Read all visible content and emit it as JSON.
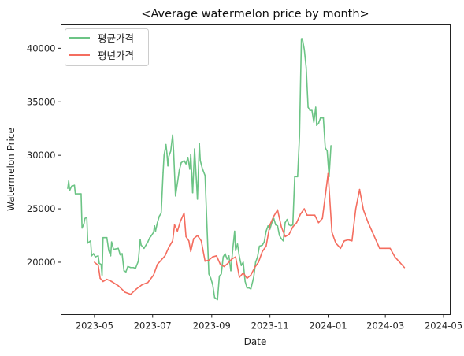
{
  "chart_data": {
    "type": "line",
    "title": "<Average watermelon price by month>",
    "xlabel": "Date",
    "ylabel": "Watermelon Price",
    "xlim": [
      "2023-03-27",
      "2024-05-08"
    ],
    "ylim": [
      15100,
      42200
    ],
    "x_ticks": [
      "2023-05",
      "2023-07",
      "2023-09",
      "2023-11",
      "2024-01",
      "2024-03",
      "2024-05"
    ],
    "x_tick_dates": [
      "2023-05-01",
      "2023-07-01",
      "2023-09-01",
      "2023-11-01",
      "2024-01-01",
      "2024-03-01",
      "2024-05-01"
    ],
    "y_ticks": [
      20000,
      25000,
      30000,
      35000,
      40000
    ],
    "legend_position": "upper-left",
    "grid": false,
    "series": [
      {
        "name": "평균가격",
        "color": "#6cc485",
        "points": [
          [
            "2023-04-03",
            26900
          ],
          [
            "2023-04-04",
            27600
          ],
          [
            "2023-04-05",
            26700
          ],
          [
            "2023-04-07",
            27100
          ],
          [
            "2023-04-10",
            27200
          ],
          [
            "2023-04-11",
            26400
          ],
          [
            "2023-04-17",
            26400
          ],
          [
            "2023-04-18",
            23200
          ],
          [
            "2023-04-20",
            23600
          ],
          [
            "2023-04-21",
            24100
          ],
          [
            "2023-04-23",
            24200
          ],
          [
            "2023-04-24",
            21800
          ],
          [
            "2023-04-27",
            22000
          ],
          [
            "2023-04-28",
            20600
          ],
          [
            "2023-04-30",
            20800
          ],
          [
            "2023-05-02",
            20500
          ],
          [
            "2023-05-05",
            20600
          ],
          [
            "2023-05-06",
            19900
          ],
          [
            "2023-05-08",
            19800
          ],
          [
            "2023-05-09",
            18800
          ],
          [
            "2023-05-10",
            22300
          ],
          [
            "2023-05-14",
            22300
          ],
          [
            "2023-05-16",
            21100
          ],
          [
            "2023-05-18",
            20600
          ],
          [
            "2023-05-19",
            21900
          ],
          [
            "2023-05-21",
            21200
          ],
          [
            "2023-05-26",
            21300
          ],
          [
            "2023-05-28",
            20700
          ],
          [
            "2023-05-30",
            20800
          ],
          [
            "2023-06-01",
            19200
          ],
          [
            "2023-06-03",
            19100
          ],
          [
            "2023-06-05",
            19600
          ],
          [
            "2023-06-08",
            19500
          ],
          [
            "2023-06-11",
            19500
          ],
          [
            "2023-06-13",
            19400
          ],
          [
            "2023-06-16",
            20100
          ],
          [
            "2023-06-18",
            22100
          ],
          [
            "2023-06-19",
            21600
          ],
          [
            "2023-06-22",
            21300
          ],
          [
            "2023-06-24",
            21600
          ],
          [
            "2023-06-26",
            21900
          ],
          [
            "2023-06-28",
            22300
          ],
          [
            "2023-06-29",
            22400
          ],
          [
            "2023-07-02",
            22800
          ],
          [
            "2023-07-03",
            23400
          ],
          [
            "2023-07-04",
            22900
          ],
          [
            "2023-07-06",
            23700
          ],
          [
            "2023-07-08",
            24300
          ],
          [
            "2023-07-10",
            24600
          ],
          [
            "2023-07-12",
            28400
          ],
          [
            "2023-07-13",
            30000
          ],
          [
            "2023-07-15",
            31000
          ],
          [
            "2023-07-16",
            30200
          ],
          [
            "2023-07-17",
            29000
          ],
          [
            "2023-07-18",
            29900
          ],
          [
            "2023-07-20",
            30400
          ],
          [
            "2023-07-22",
            31900
          ],
          [
            "2023-07-23",
            30400
          ],
          [
            "2023-07-25",
            26200
          ],
          [
            "2023-07-27",
            27400
          ],
          [
            "2023-07-29",
            28600
          ],
          [
            "2023-07-31",
            29300
          ],
          [
            "2023-08-03",
            29500
          ],
          [
            "2023-08-05",
            29200
          ],
          [
            "2023-08-07",
            29800
          ],
          [
            "2023-08-09",
            28700
          ],
          [
            "2023-08-10",
            30100
          ],
          [
            "2023-08-11",
            28300
          ],
          [
            "2023-08-12",
            26500
          ],
          [
            "2023-08-14",
            30600
          ],
          [
            "2023-08-16",
            27500
          ],
          [
            "2023-08-17",
            25900
          ],
          [
            "2023-08-19",
            31100
          ],
          [
            "2023-08-20",
            29500
          ],
          [
            "2023-08-22",
            28800
          ],
          [
            "2023-08-25",
            28100
          ],
          [
            "2023-08-27",
            23400
          ],
          [
            "2023-08-29",
            18900
          ],
          [
            "2023-08-31",
            18500
          ],
          [
            "2023-09-02",
            17900
          ],
          [
            "2023-09-04",
            16700
          ],
          [
            "2023-09-07",
            16500
          ],
          [
            "2023-09-09",
            18700
          ],
          [
            "2023-09-11",
            18900
          ],
          [
            "2023-09-13",
            20500
          ],
          [
            "2023-09-15",
            20800
          ],
          [
            "2023-09-17",
            20300
          ],
          [
            "2023-09-19",
            20600
          ],
          [
            "2023-09-21",
            19200
          ],
          [
            "2023-09-23",
            21200
          ],
          [
            "2023-09-25",
            22900
          ],
          [
            "2023-09-26",
            21100
          ],
          [
            "2023-09-28",
            21700
          ],
          [
            "2023-09-30",
            20500
          ],
          [
            "2023-10-02",
            19700
          ],
          [
            "2023-10-04",
            20000
          ],
          [
            "2023-10-06",
            18200
          ],
          [
            "2023-10-08",
            17600
          ],
          [
            "2023-10-10",
            17600
          ],
          [
            "2023-10-12",
            17500
          ],
          [
            "2023-10-15",
            18600
          ],
          [
            "2023-10-17",
            20000
          ],
          [
            "2023-10-19",
            20500
          ],
          [
            "2023-10-21",
            21500
          ],
          [
            "2023-10-24",
            21600
          ],
          [
            "2023-10-26",
            21900
          ],
          [
            "2023-10-28",
            22900
          ],
          [
            "2023-10-30",
            23400
          ],
          [
            "2023-11-01",
            23100
          ],
          [
            "2023-11-03",
            23700
          ],
          [
            "2023-11-05",
            24100
          ],
          [
            "2023-11-07",
            23500
          ],
          [
            "2023-11-09",
            23400
          ],
          [
            "2023-11-11",
            22500
          ],
          [
            "2023-11-13",
            22200
          ],
          [
            "2023-11-15",
            22000
          ],
          [
            "2023-11-17",
            23700
          ],
          [
            "2023-11-19",
            24000
          ],
          [
            "2023-11-21",
            23500
          ],
          [
            "2023-11-23",
            23400
          ],
          [
            "2023-11-25",
            23500
          ],
          [
            "2023-11-27",
            28000
          ],
          [
            "2023-11-30",
            28000
          ],
          [
            "2023-12-02",
            31800
          ],
          [
            "2023-12-04",
            40900
          ],
          [
            "2023-12-05",
            40900
          ],
          [
            "2023-12-07",
            39900
          ],
          [
            "2023-12-09",
            38200
          ],
          [
            "2023-12-11",
            34500
          ],
          [
            "2023-12-13",
            34200
          ],
          [
            "2023-12-15",
            34200
          ],
          [
            "2023-12-17",
            33100
          ],
          [
            "2023-12-19",
            34500
          ],
          [
            "2023-12-20",
            32800
          ],
          [
            "2023-12-22",
            33000
          ],
          [
            "2023-12-24",
            33500
          ],
          [
            "2023-12-27",
            33500
          ],
          [
            "2023-12-29",
            30700
          ],
          [
            "2023-12-31",
            30400
          ],
          [
            "2024-01-02",
            28000
          ],
          [
            "2024-01-04",
            30900
          ]
        ]
      },
      {
        "name": "평년가격",
        "color": "#f46d5f",
        "points": [
          [
            "2023-05-01",
            20000
          ],
          [
            "2023-05-05",
            19700
          ],
          [
            "2023-05-07",
            18500
          ],
          [
            "2023-05-10",
            18200
          ],
          [
            "2023-05-14",
            18400
          ],
          [
            "2023-05-19",
            18200
          ],
          [
            "2023-05-26",
            17800
          ],
          [
            "2023-06-02",
            17200
          ],
          [
            "2023-06-08",
            17000
          ],
          [
            "2023-06-14",
            17500
          ],
          [
            "2023-06-20",
            17900
          ],
          [
            "2023-06-26",
            18100
          ],
          [
            "2023-07-02",
            18800
          ],
          [
            "2023-07-06",
            19800
          ],
          [
            "2023-07-10",
            20200
          ],
          [
            "2023-07-14",
            20600
          ],
          [
            "2023-07-18",
            21400
          ],
          [
            "2023-07-22",
            22000
          ],
          [
            "2023-07-24",
            23500
          ],
          [
            "2023-07-27",
            22900
          ],
          [
            "2023-07-30",
            23800
          ],
          [
            "2023-08-03",
            24600
          ],
          [
            "2023-08-05",
            22400
          ],
          [
            "2023-08-08",
            22000
          ],
          [
            "2023-08-10",
            21000
          ],
          [
            "2023-08-13",
            22200
          ],
          [
            "2023-08-17",
            22500
          ],
          [
            "2023-08-21",
            22000
          ],
          [
            "2023-08-25",
            20100
          ],
          [
            "2023-08-29",
            20200
          ],
          [
            "2023-09-02",
            20500
          ],
          [
            "2023-09-06",
            20600
          ],
          [
            "2023-09-10",
            19800
          ],
          [
            "2023-09-14",
            19600
          ],
          [
            "2023-09-18",
            19900
          ],
          [
            "2023-09-22",
            20300
          ],
          [
            "2023-09-26",
            20500
          ],
          [
            "2023-09-30",
            18600
          ],
          [
            "2023-10-04",
            19000
          ],
          [
            "2023-10-08",
            18500
          ],
          [
            "2023-10-12",
            18800
          ],
          [
            "2023-10-16",
            19500
          ],
          [
            "2023-10-20",
            20000
          ],
          [
            "2023-10-24",
            21000
          ],
          [
            "2023-10-28",
            21500
          ],
          [
            "2023-11-01",
            23500
          ],
          [
            "2023-11-05",
            24300
          ],
          [
            "2023-11-09",
            24900
          ],
          [
            "2023-11-13",
            23300
          ],
          [
            "2023-11-17",
            22400
          ],
          [
            "2023-11-21",
            22600
          ],
          [
            "2023-11-25",
            23300
          ],
          [
            "2023-11-29",
            23700
          ],
          [
            "2023-12-03",
            24500
          ],
          [
            "2023-12-07",
            25000
          ],
          [
            "2023-12-10",
            24400
          ],
          [
            "2023-12-14",
            24400
          ],
          [
            "2023-12-18",
            24400
          ],
          [
            "2023-12-22",
            23700
          ],
          [
            "2023-12-26",
            24100
          ],
          [
            "2024-01-01",
            28300
          ],
          [
            "2024-01-05",
            22800
          ],
          [
            "2024-01-09",
            21800
          ],
          [
            "2024-01-14",
            21300
          ],
          [
            "2024-01-18",
            22000
          ],
          [
            "2024-01-22",
            22100
          ],
          [
            "2024-01-26",
            22000
          ],
          [
            "2024-01-30",
            25000
          ],
          [
            "2024-02-03",
            26800
          ],
          [
            "2024-02-07",
            24900
          ],
          [
            "2024-02-12",
            23700
          ],
          [
            "2024-02-18",
            22500
          ],
          [
            "2024-02-24",
            21300
          ],
          [
            "2024-03-01",
            21300
          ],
          [
            "2024-03-06",
            21300
          ],
          [
            "2024-03-11",
            20500
          ],
          [
            "2024-03-16",
            20000
          ],
          [
            "2024-03-21",
            19500
          ]
        ]
      }
    ]
  }
}
